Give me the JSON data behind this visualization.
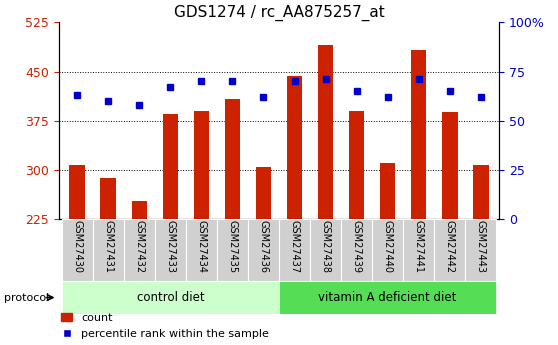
{
  "title": "GDS1274 / rc_AA875257_at",
  "samples": [
    "GSM27430",
    "GSM27431",
    "GSM27432",
    "GSM27433",
    "GSM27434",
    "GSM27435",
    "GSM27436",
    "GSM27437",
    "GSM27438",
    "GSM27439",
    "GSM27440",
    "GSM27441",
    "GSM27442",
    "GSM27443"
  ],
  "counts": [
    308,
    287,
    252,
    385,
    390,
    408,
    305,
    443,
    490,
    390,
    310,
    483,
    388,
    308
  ],
  "percentile_ranks": [
    63,
    60,
    58,
    67,
    70,
    70,
    62,
    70,
    71,
    65,
    62,
    71,
    65,
    62
  ],
  "ylim_left": [
    225,
    525
  ],
  "ylim_right": [
    0,
    100
  ],
  "yticks_left": [
    225,
    300,
    375,
    450,
    525
  ],
  "yticks_right": [
    0,
    25,
    50,
    75,
    100
  ],
  "bar_color": "#cc2200",
  "dot_color": "#0000cc",
  "groups": [
    {
      "label": "control diet",
      "start": 0,
      "end": 7,
      "color": "#ccffcc"
    },
    {
      "label": "vitamin A deficient diet",
      "start": 7,
      "end": 14,
      "color": "#55dd55"
    }
  ],
  "protocol_label": "protocol",
  "legend_count_label": "count",
  "legend_percentile_label": "percentile rank within the sample",
  "bar_color_legend": "#cc2200",
  "dot_color_legend": "#0000cc",
  "tick_label_color_left": "#cc2200",
  "tick_label_color_right": "#0000cc",
  "title_fontsize": 11,
  "tick_fontsize": 9,
  "bar_width": 0.5,
  "grid_yticks": [
    300,
    375,
    450
  ],
  "right_tick_labels": [
    "0",
    "25",
    "50",
    "75",
    "100%"
  ]
}
